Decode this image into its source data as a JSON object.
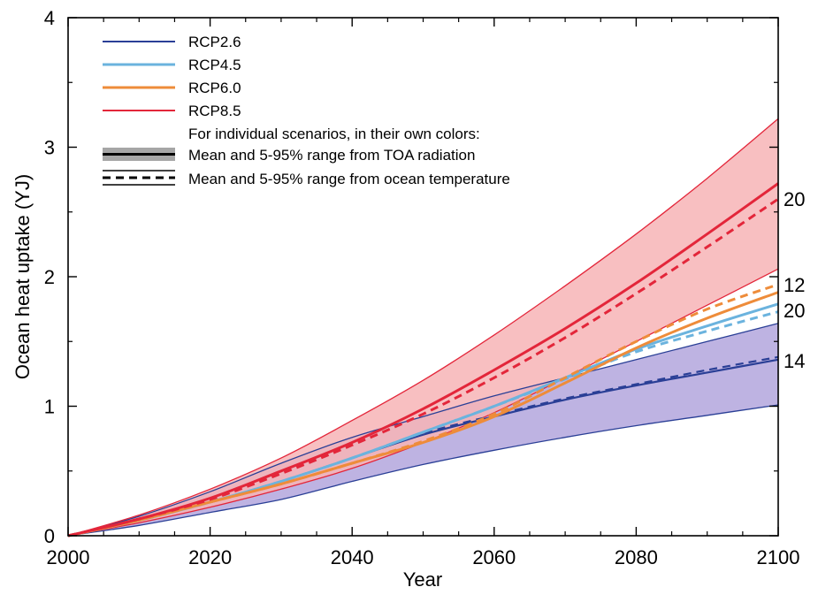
{
  "chart_data": {
    "type": "line",
    "xlabel": "Year",
    "ylabel": "Ocean heat uptake (YJ)",
    "xlim": [
      2000,
      2100
    ],
    "ylim": [
      0,
      4
    ],
    "x_ticks": [
      "2000",
      "2020",
      "2040",
      "2060",
      "2080",
      "2100"
    ],
    "y_ticks": [
      "0",
      "1",
      "2",
      "3",
      "4"
    ],
    "grid": false,
    "legend_position": "top-left",
    "legend": {
      "entries": [
        "RCP2.6",
        "RCP4.5",
        "RCP6.0",
        "RCP8.5"
      ],
      "note": "For individual scenarios, in their own colors:",
      "toa_label": "Mean and 5-95% range from TOA radiation",
      "ocean_label": "Mean and 5-95% range from ocean temperature"
    },
    "x": [
      2000,
      2010,
      2020,
      2030,
      2040,
      2050,
      2060,
      2070,
      2080,
      2090,
      2100
    ],
    "series": [
      {
        "name": "RCP2.6",
        "color": "#2a3f96",
        "band_color": "#b3a6dd",
        "count": "14",
        "toa_mean": [
          0,
          0.12,
          0.26,
          0.42,
          0.6,
          0.78,
          0.92,
          1.05,
          1.16,
          1.26,
          1.36
        ],
        "toa_low": [
          0,
          0.08,
          0.18,
          0.28,
          0.42,
          0.55,
          0.66,
          0.76,
          0.85,
          0.93,
          1.01
        ],
        "toa_high": [
          0,
          0.15,
          0.34,
          0.56,
          0.76,
          0.92,
          1.08,
          1.22,
          1.36,
          1.5,
          1.64
        ],
        "ocean_mean": [
          0,
          0.12,
          0.26,
          0.42,
          0.6,
          0.79,
          0.93,
          1.06,
          1.17,
          1.28,
          1.38
        ]
      },
      {
        "name": "RCP4.5",
        "color": "#6bb3de",
        "count": "20",
        "toa_mean": [
          0,
          0.12,
          0.26,
          0.42,
          0.6,
          0.8,
          1.0,
          1.22,
          1.44,
          1.62,
          1.79
        ],
        "ocean_mean": [
          0,
          0.12,
          0.26,
          0.42,
          0.6,
          0.8,
          1.0,
          1.21,
          1.42,
          1.58,
          1.73
        ]
      },
      {
        "name": "RCP6.0",
        "color": "#ee8c3a",
        "count": "12",
        "toa_mean": [
          0,
          0.12,
          0.26,
          0.4,
          0.56,
          0.72,
          0.92,
          1.18,
          1.45,
          1.68,
          1.88
        ],
        "ocean_mean": [
          0,
          0.12,
          0.26,
          0.4,
          0.56,
          0.73,
          0.94,
          1.22,
          1.5,
          1.75,
          1.94
        ]
      },
      {
        "name": "RCP8.5",
        "color": "#e3263a",
        "band_color": "#f7b4b6",
        "count": "20",
        "toa_mean": [
          0,
          0.13,
          0.29,
          0.5,
          0.72,
          0.98,
          1.28,
          1.6,
          1.95,
          2.33,
          2.72
        ],
        "toa_low": [
          0,
          0.1,
          0.22,
          0.36,
          0.52,
          0.72,
          0.95,
          1.22,
          1.5,
          1.78,
          2.06
        ],
        "toa_high": [
          0,
          0.16,
          0.36,
          0.6,
          0.89,
          1.2,
          1.55,
          1.93,
          2.33,
          2.76,
          3.22
        ],
        "ocean_mean": [
          0,
          0.13,
          0.28,
          0.48,
          0.7,
          0.94,
          1.22,
          1.53,
          1.87,
          2.23,
          2.6
        ]
      }
    ]
  }
}
